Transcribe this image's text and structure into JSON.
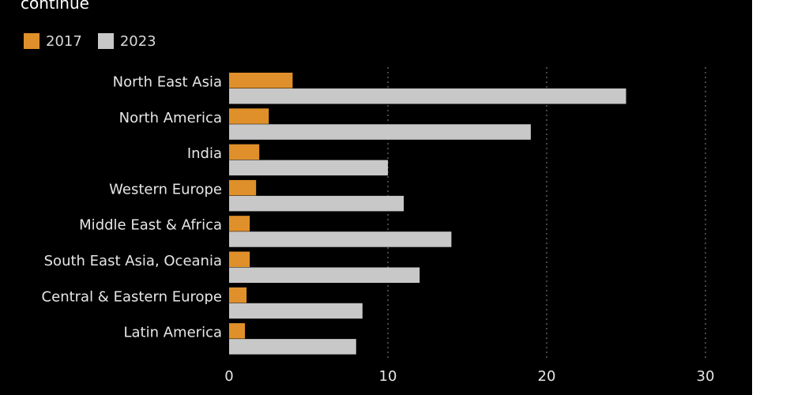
{
  "title": "continue",
  "colors": {
    "background": "#000000",
    "series_2017": "#e0902a",
    "series_2023": "#c8c8c8"
  },
  "chart_data": {
    "type": "bar",
    "orientation": "horizontal",
    "title": "continue",
    "categories": [
      "North East Asia",
      "North America",
      "India",
      "Western Europe",
      "Middle East & Africa",
      "South East Asia, Oceania",
      "Central & Eastern Europe",
      "Latin America"
    ],
    "series": [
      {
        "name": "2017",
        "color": "#e0902a",
        "values": [
          4.0,
          2.5,
          1.9,
          1.7,
          1.3,
          1.3,
          1.1,
          1.0
        ]
      },
      {
        "name": "2023",
        "color": "#c8c8c8",
        "values": [
          25.0,
          19.0,
          10.0,
          11.0,
          14.0,
          12.0,
          8.4,
          8.0
        ]
      }
    ],
    "xlim": [
      0,
      30
    ],
    "xticks": [
      0,
      10,
      20,
      30
    ],
    "grid": true,
    "legend": "top-left"
  }
}
